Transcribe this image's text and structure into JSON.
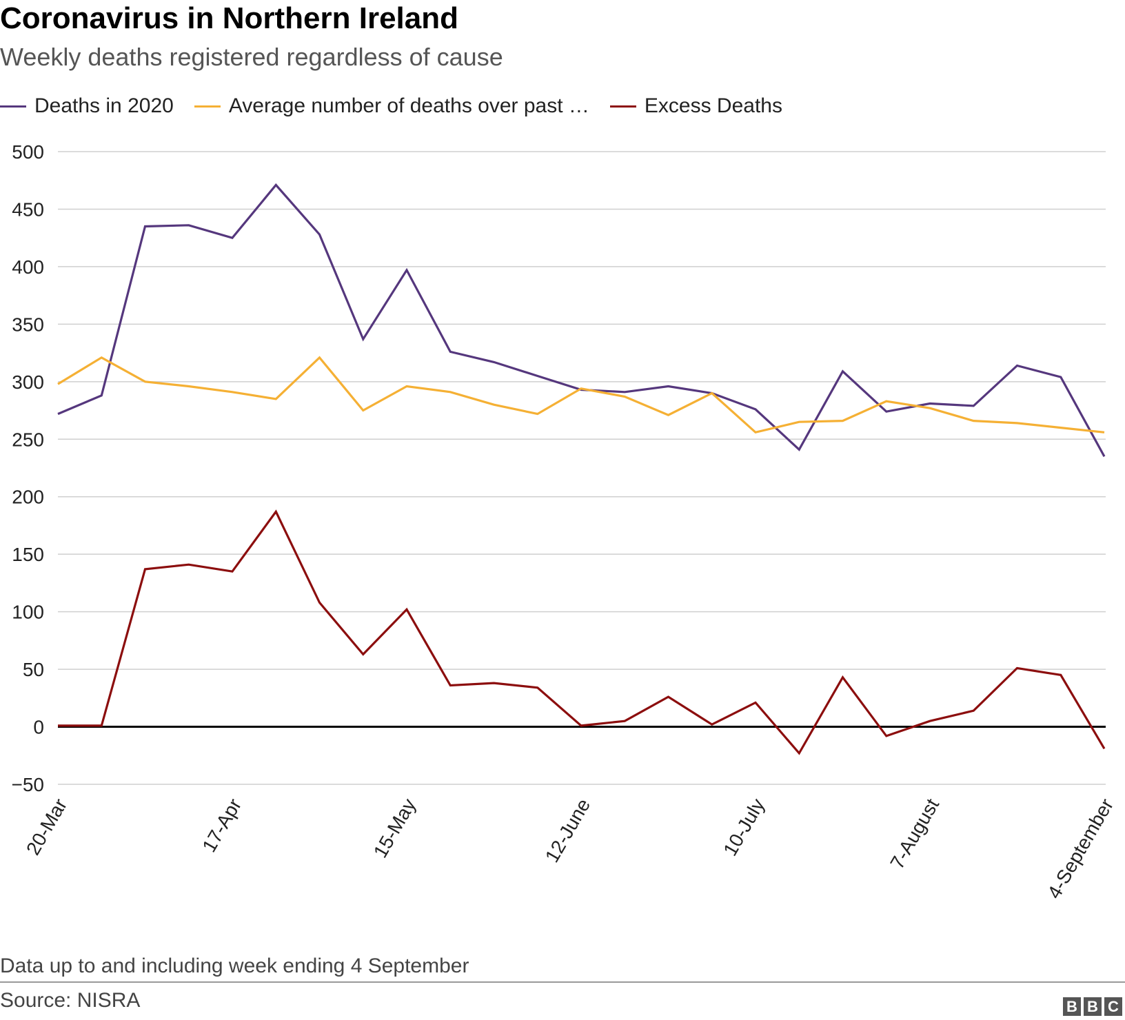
{
  "title": "Coronavirus in Northern Ireland",
  "subtitle": "Weekly deaths registered regardless of cause",
  "footnote": "Data up to and including week ending 4 September",
  "source": "Source: NISRA",
  "logo": [
    "B",
    "B",
    "C"
  ],
  "chart_data": {
    "type": "line",
    "ylim": [
      -50,
      500
    ],
    "yticks": [
      500,
      450,
      400,
      350,
      300,
      250,
      200,
      150,
      100,
      50,
      0,
      -50
    ],
    "ytick_labels": [
      "500",
      "450",
      "400",
      "350",
      "300",
      "250",
      "200",
      "150",
      "100",
      "50",
      "0",
      "−50"
    ],
    "x_labels": [
      {
        "index": 0,
        "label": "20-Mar"
      },
      {
        "index": 4,
        "label": "17-Apr"
      },
      {
        "index": 8,
        "label": "15-May"
      },
      {
        "index": 12,
        "label": "12-June"
      },
      {
        "index": 16,
        "label": "10-July"
      },
      {
        "index": 20,
        "label": "7-August"
      },
      {
        "index": 24,
        "label": "4-September"
      }
    ],
    "grid": true,
    "legend_position": "top-left",
    "series": [
      {
        "name": "Deaths in 2020",
        "color": "#55377d",
        "values": [
          272,
          288,
          435,
          436,
          425,
          471,
          428,
          337,
          397,
          326,
          317,
          305,
          293,
          291,
          296,
          290,
          276,
          241,
          309,
          274,
          281,
          279,
          314,
          304,
          235
        ]
      },
      {
        "name": "Average number of deaths over past …",
        "color": "#f5b034",
        "values": [
          298,
          321,
          300,
          296,
          291,
          285,
          321,
          275,
          296,
          291,
          280,
          272,
          294,
          287,
          271,
          290,
          256,
          265,
          266,
          283,
          277,
          266,
          264,
          260,
          256
        ]
      },
      {
        "name": "Excess Deaths",
        "color": "#8c0e0e",
        "values": [
          1,
          1,
          137,
          141,
          135,
          187,
          108,
          63,
          102,
          36,
          38,
          34,
          1,
          5,
          26,
          2,
          21,
          -23,
          43,
          -8,
          5,
          14,
          51,
          45,
          -19
        ]
      }
    ]
  }
}
